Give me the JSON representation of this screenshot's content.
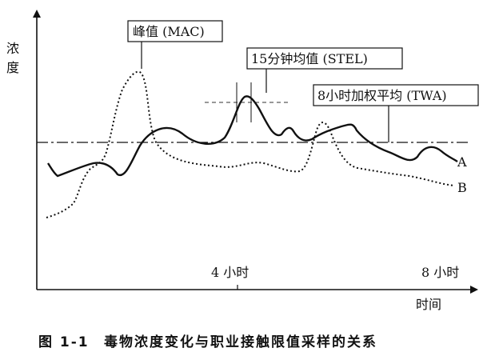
{
  "axes": {
    "y_label": "浓度",
    "x_label": "时间",
    "x_ticks": [
      "4 小时",
      "8 小时"
    ]
  },
  "annotations": {
    "mac": "峰值 (MAC)",
    "stel": "15分钟均值 (STEL)",
    "twa": "8小时加权平均 (TWA)"
  },
  "series": {
    "a_label": "A",
    "b_label": "B"
  },
  "caption": {
    "figure_no": "图 1-1",
    "title": "毒物浓度变化与职业接触限值采样的关系"
  }
}
